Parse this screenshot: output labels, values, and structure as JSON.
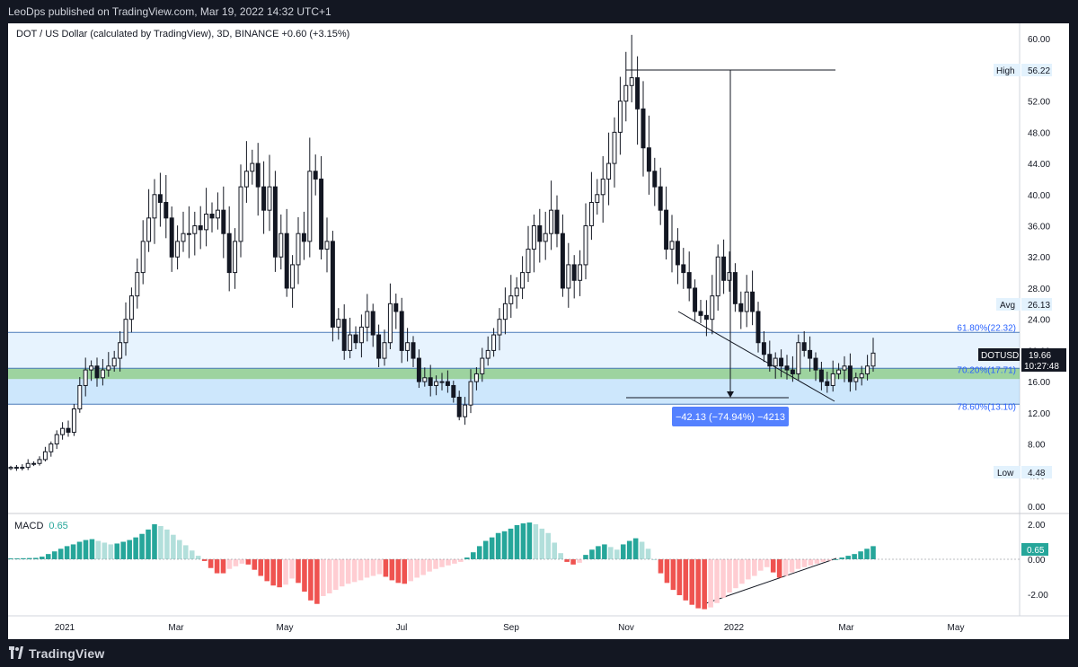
{
  "publisher_line": "LeoDps published on TradingView.com, Mar 19, 2022 14:32 UTC+1",
  "header": {
    "symbol_line": "DOT / US Dollar (calculated by TradingView), 3D, BINANCE",
    "change": "+0.60 (+3.15%)"
  },
  "price_axis": [
    "60.00",
    "52.00",
    "48.00",
    "44.00",
    "40.00",
    "36.00",
    "32.00",
    "28.00",
    "24.00",
    "20.00",
    "16.00",
    "12.00",
    "8.00",
    "4.00",
    "0.00"
  ],
  "macd_axis": [
    "2.00",
    "0.00",
    "-2.00"
  ],
  "time_axis": [
    "2021",
    "Mar",
    "May",
    "Jul",
    "Sep",
    "Nov",
    "2022",
    "Mar",
    "May"
  ],
  "markers": {
    "high_label": "High",
    "high_value": "56.22",
    "avg_label": "Avg",
    "avg_value": "26.13",
    "low_label": "Low",
    "low_value": "4.48",
    "symbol_tag": "DOTUSD",
    "last_price": "19.66",
    "countdown": "10:27:48"
  },
  "fib_levels": [
    {
      "label": "61.80%(22.32)",
      "price": 22.32
    },
    {
      "label": "70.20%(17.71)",
      "price": 17.71
    },
    {
      "label": "78.60%(13.10)",
      "price": 13.1
    }
  ],
  "measure_box": "−42.13 (−74.94%) −4213",
  "macd": {
    "label": "MACD",
    "value": "0.65",
    "value_tag": "0.65"
  },
  "footer": {
    "brand": "TradingView"
  },
  "chart_data": {
    "type": "candlestick",
    "title": "DOT / US Dollar (calculated by TradingView), 3D, BINANCE",
    "ylim": [
      0,
      62
    ],
    "close_series": [
      5,
      5,
      5,
      5.5,
      5.5,
      6,
      7,
      8,
      9.2,
      10,
      9.5,
      12.5,
      15.5,
      17.5,
      18,
      16.5,
      17.5,
      18,
      19,
      21,
      24,
      27,
      30,
      34,
      37,
      40,
      39,
      37,
      32,
      34,
      35,
      35,
      36,
      35.5,
      37.5,
      37,
      38,
      35,
      30,
      34,
      41,
      43,
      44,
      41,
      38,
      41,
      32,
      35,
      28,
      31,
      35,
      34,
      43,
      42,
      33,
      34,
      23,
      24,
      20,
      22,
      21,
      23,
      25,
      22,
      19,
      21,
      26,
      25,
      20,
      21,
      19,
      16,
      16.5,
      15.5,
      16,
      16,
      15.5,
      14,
      11.5,
      13,
      16,
      17,
      19,
      20,
      22,
      24,
      26,
      27,
      28,
      30,
      33,
      36,
      34,
      35,
      38,
      35,
      28,
      31,
      29,
      31,
      36,
      39,
      40,
      42,
      44,
      48,
      52,
      54,
      55,
      51,
      46,
      43,
      41,
      38,
      33,
      34,
      31,
      30,
      28,
      25,
      24.5,
      24,
      27,
      32,
      29,
      30,
      26,
      25,
      27.5,
      25,
      21,
      19.5,
      18,
      19,
      18,
      17.5,
      17,
      21,
      20,
      19,
      17.5,
      16,
      15.5,
      17,
      17.5,
      18,
      16,
      16.5,
      17,
      18,
      19.66
    ],
    "macd_histogram": [
      0.05,
      0.05,
      0.06,
      0.07,
      0.08,
      0.15,
      0.3,
      0.45,
      0.6,
      0.75,
      0.85,
      1.0,
      1.1,
      1.15,
      1.05,
      0.95,
      0.85,
      0.9,
      1.0,
      1.1,
      1.25,
      1.45,
      1.7,
      2.0,
      1.9,
      1.7,
      1.4,
      1.1,
      0.8,
      0.5,
      0.2,
      -0.1,
      -0.5,
      -0.8,
      -0.8,
      -0.55,
      -0.4,
      -0.25,
      -0.3,
      -0.6,
      -0.95,
      -1.25,
      -1.5,
      -1.6,
      -1.45,
      -1.1,
      -1.35,
      -1.85,
      -2.35,
      -2.55,
      -2.1,
      -1.95,
      -1.75,
      -1.55,
      -1.4,
      -1.3,
      -1.2,
      -1.05,
      -0.95,
      -0.85,
      -1.0,
      -1.2,
      -1.35,
      -1.4,
      -1.25,
      -1.05,
      -0.9,
      -0.7,
      -0.55,
      -0.45,
      -0.35,
      -0.25,
      -0.15,
      0.1,
      0.4,
      0.75,
      1.05,
      1.25,
      1.5,
      1.6,
      1.75,
      1.95,
      2.05,
      2.1,
      2.0,
      1.75,
      1.5,
      0.95,
      0.35,
      -0.15,
      -0.3,
      -0.2,
      0.25,
      0.55,
      0.75,
      0.85,
      0.7,
      0.55,
      0.85,
      1.05,
      1.2,
      1.0,
      0.6,
      0.0,
      -0.8,
      -1.35,
      -1.75,
      -2.05,
      -2.35,
      -2.6,
      -2.8,
      -2.85,
      -2.75,
      -2.5,
      -2.2,
      -1.9,
      -1.65,
      -1.4,
      -1.15,
      -0.95,
      -0.65,
      -0.45,
      -0.75,
      -1.05,
      -0.95,
      -0.75,
      -0.55,
      -0.45,
      -0.35,
      -0.25,
      -0.15,
      -0.08,
      0.0,
      0.1,
      0.2,
      0.3,
      0.45,
      0.6,
      0.75
    ],
    "events": {
      "high": 56.22,
      "avg": 26.13,
      "low": 4.48,
      "last": 19.66,
      "measure_change": -42.13,
      "measure_pct": -74.94,
      "measure_ticks": -4213
    }
  }
}
